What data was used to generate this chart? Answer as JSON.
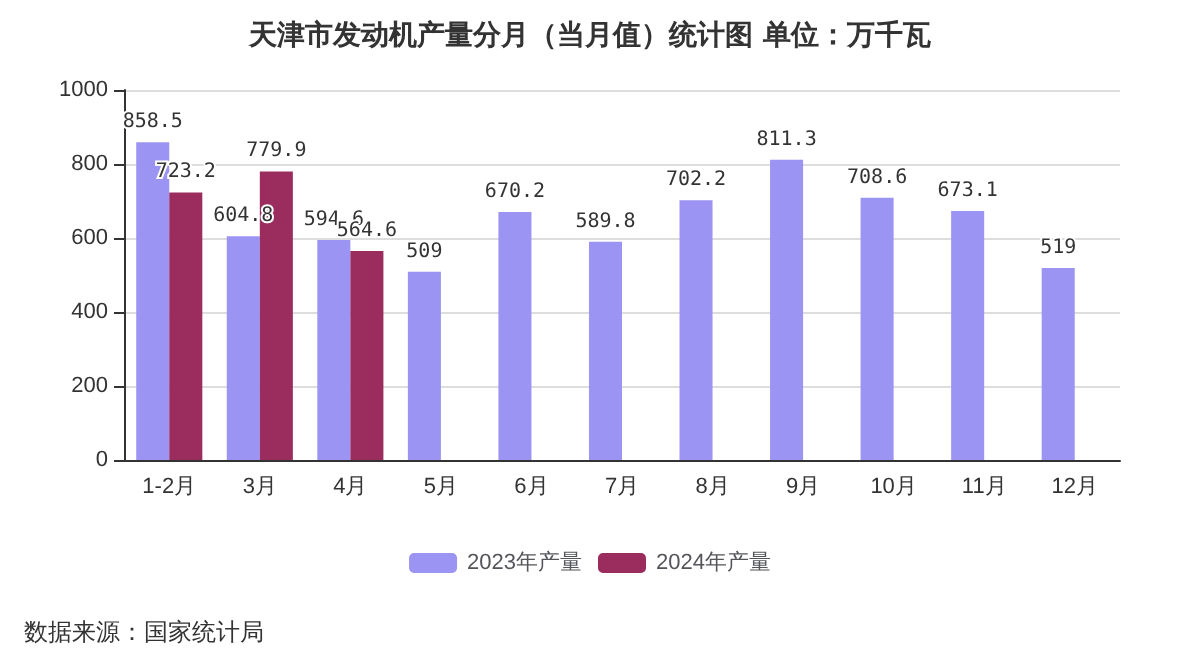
{
  "chart_data": {
    "type": "bar",
    "title": "天津市发动机产量分月（当月值）统计图 单位：万千瓦",
    "categories": [
      "1-2月",
      "3月",
      "4月",
      "5月",
      "6月",
      "7月",
      "8月",
      "9月",
      "10月",
      "11月",
      "12月"
    ],
    "series": [
      {
        "name": "2023年产量",
        "color": "#9b94f2",
        "values": [
          858.5,
          604.8,
          594.6,
          509,
          670.2,
          589.8,
          702.2,
          811.3,
          708.6,
          673.1,
          519
        ]
      },
      {
        "name": "2024年产量",
        "color": "#9b2d5e",
        "values": [
          723.2,
          779.9,
          564.6,
          null,
          null,
          null,
          null,
          null,
          null,
          null,
          null
        ]
      }
    ],
    "ylim": [
      0,
      1000
    ],
    "yticks": [
      0,
      200,
      400,
      600,
      800,
      1000
    ],
    "grid": "y",
    "legend": "bottom",
    "data_labels": true,
    "annotations": [
      "数据来源：国家统计局"
    ]
  }
}
